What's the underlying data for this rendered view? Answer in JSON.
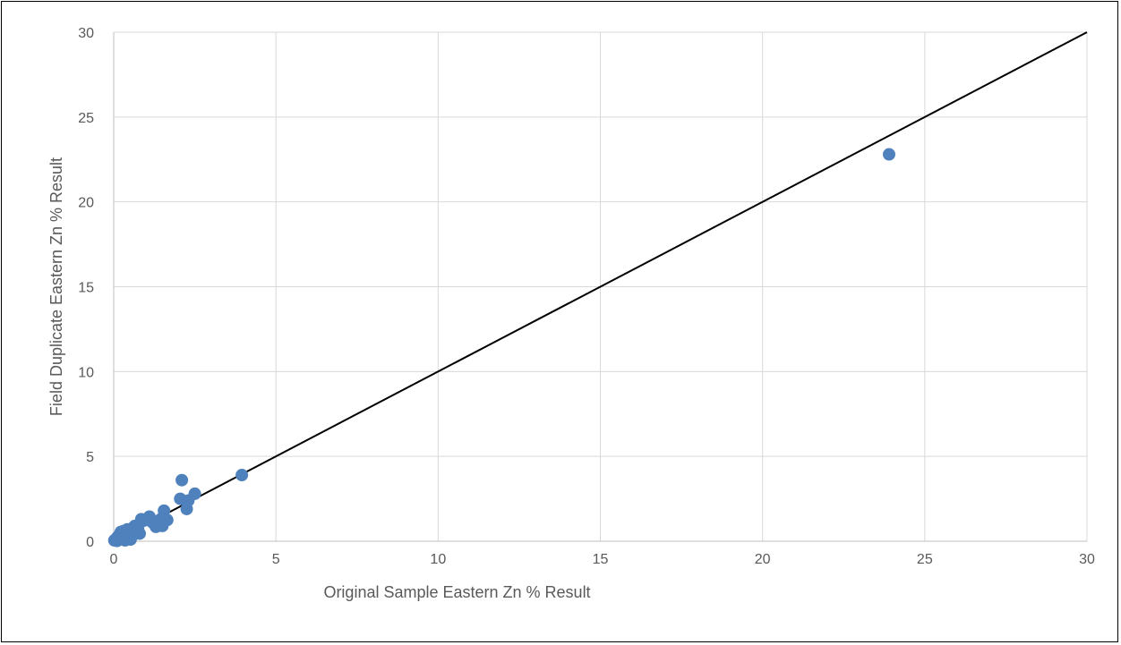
{
  "chart_data": {
    "type": "scatter",
    "title": "",
    "xlabel": "Original Sample Eastern Zn % Result",
    "ylabel": "Field Duplicate Eastern Zn % Result",
    "xlim": [
      0,
      30
    ],
    "ylim": [
      0,
      30
    ],
    "x_ticks": [
      0,
      5,
      10,
      15,
      20,
      25,
      30
    ],
    "y_ticks": [
      0,
      5,
      10,
      15,
      20,
      25,
      30
    ],
    "grid": true,
    "legend": "none",
    "series": [
      {
        "color": "#4F81BD",
        "points": [
          [
            0.02,
            0.05
          ],
          [
            0.05,
            0.1
          ],
          [
            0.08,
            0.15
          ],
          [
            0.1,
            0.02
          ],
          [
            0.12,
            0.25
          ],
          [
            0.15,
            0.3
          ],
          [
            0.18,
            0.1
          ],
          [
            0.2,
            0.45
          ],
          [
            0.22,
            0.55
          ],
          [
            0.25,
            0.2
          ],
          [
            0.3,
            0.6
          ],
          [
            0.32,
            0.35
          ],
          [
            0.35,
            0.05
          ],
          [
            0.4,
            0.5
          ],
          [
            0.42,
            0.7
          ],
          [
            0.45,
            0.3
          ],
          [
            0.5,
            0.55
          ],
          [
            0.52,
            0.1
          ],
          [
            0.55,
            0.65
          ],
          [
            0.6,
            0.8
          ],
          [
            0.62,
            0.4
          ],
          [
            0.65,
            0.9
          ],
          [
            0.7,
            0.6
          ],
          [
            0.75,
            0.75
          ],
          [
            0.8,
            0.45
          ],
          [
            0.85,
            1.3
          ],
          [
            0.9,
            1.2
          ],
          [
            1.0,
            1.25
          ],
          [
            1.1,
            1.45
          ],
          [
            1.2,
            1.1
          ],
          [
            1.3,
            0.85
          ],
          [
            1.45,
            1.3
          ],
          [
            1.5,
            0.9
          ],
          [
            1.55,
            1.8
          ],
          [
            1.65,
            1.25
          ],
          [
            2.05,
            2.5
          ],
          [
            2.1,
            3.6
          ],
          [
            2.25,
            1.9
          ],
          [
            2.3,
            2.4
          ],
          [
            2.5,
            2.8
          ],
          [
            3.95,
            3.9
          ],
          [
            23.9,
            22.8
          ]
        ]
      }
    ],
    "reference_line": {
      "x": [
        0,
        30
      ],
      "y": [
        0,
        30
      ],
      "color": "#000000"
    }
  }
}
